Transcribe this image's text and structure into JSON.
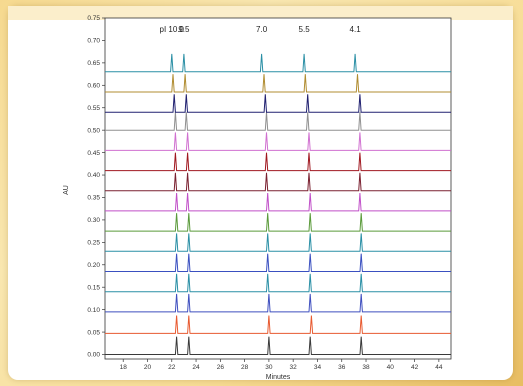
{
  "chart_data": {
    "type": "line",
    "xlabel": "Minutes",
    "ylabel": "AU",
    "xlim": [
      16.5,
      45.0
    ],
    "ylim": [
      -0.01,
      0.75
    ],
    "x_ticks": [
      18,
      20,
      22,
      24,
      26,
      28,
      30,
      32,
      34,
      36,
      38,
      40,
      42,
      44
    ],
    "y_ticks": [
      0.0,
      0.05,
      0.1,
      0.15,
      0.2,
      0.25,
      0.3,
      0.35,
      0.4,
      0.45,
      0.5,
      0.55,
      0.6,
      0.65,
      0.7,
      0.75
    ],
    "y_tick_labels": [
      "0.00",
      "0.05",
      "0.10",
      "0.15",
      "0.20",
      "0.25",
      "0.30",
      "0.35",
      "0.40",
      "0.45",
      "0.50",
      "0.55",
      "0.60",
      "0.65",
      "0.70",
      "0.75"
    ],
    "peak_labels": [
      {
        "text": "pI 10.0",
        "x": 22.0
      },
      {
        "text": "9.5",
        "x": 23.0
      },
      {
        "text": "7.0",
        "x": 29.4
      },
      {
        "text": "5.5",
        "x": 32.9
      },
      {
        "text": "4.1",
        "x": 37.1
      }
    ],
    "series": [
      {
        "baseline": 0.0,
        "color": "#3a3a3a",
        "peaks": [
          22.4,
          23.4,
          30.0,
          33.4,
          37.6
        ],
        "heights": [
          0.04,
          0.04,
          0.04,
          0.04,
          0.04
        ]
      },
      {
        "baseline": 0.047,
        "color": "#e85a30",
        "peaks": [
          22.4,
          23.4,
          30.0,
          33.5,
          37.6
        ],
        "heights": [
          0.04,
          0.04,
          0.04,
          0.04,
          0.04
        ]
      },
      {
        "baseline": 0.095,
        "color": "#3f4fbf",
        "peaks": [
          22.4,
          23.4,
          30.0,
          33.4,
          37.6
        ],
        "heights": [
          0.04,
          0.04,
          0.04,
          0.04,
          0.04
        ]
      },
      {
        "baseline": 0.14,
        "color": "#2a8fa5",
        "peaks": [
          22.4,
          23.4,
          29.9,
          33.4,
          37.6
        ],
        "heights": [
          0.04,
          0.04,
          0.04,
          0.04,
          0.04
        ]
      },
      {
        "baseline": 0.185,
        "color": "#3a50c0",
        "peaks": [
          22.4,
          23.4,
          29.9,
          33.4,
          37.6
        ],
        "heights": [
          0.04,
          0.04,
          0.04,
          0.04,
          0.04
        ]
      },
      {
        "baseline": 0.23,
        "color": "#2a8fa5",
        "peaks": [
          22.4,
          23.4,
          29.9,
          33.4,
          37.6
        ],
        "heights": [
          0.04,
          0.04,
          0.04,
          0.04,
          0.04
        ]
      },
      {
        "baseline": 0.275,
        "color": "#5a9a3a",
        "peaks": [
          22.4,
          23.4,
          29.9,
          33.4,
          37.6
        ],
        "heights": [
          0.04,
          0.04,
          0.04,
          0.04,
          0.04
        ]
      },
      {
        "baseline": 0.32,
        "color": "#c04fc8",
        "peaks": [
          22.4,
          23.3,
          29.9,
          33.4,
          37.5
        ],
        "heights": [
          0.04,
          0.04,
          0.04,
          0.04,
          0.04
        ]
      },
      {
        "baseline": 0.365,
        "color": "#7a2030",
        "peaks": [
          22.3,
          23.3,
          29.8,
          33.3,
          37.5
        ],
        "heights": [
          0.04,
          0.04,
          0.04,
          0.04,
          0.04
        ]
      },
      {
        "baseline": 0.41,
        "color": "#a01820",
        "peaks": [
          22.3,
          23.3,
          29.8,
          33.3,
          37.5
        ],
        "heights": [
          0.04,
          0.04,
          0.04,
          0.04,
          0.04
        ]
      },
      {
        "baseline": 0.455,
        "color": "#d070d0",
        "peaks": [
          22.3,
          23.3,
          29.8,
          33.3,
          37.5
        ],
        "heights": [
          0.04,
          0.04,
          0.04,
          0.04,
          0.04
        ]
      },
      {
        "baseline": 0.5,
        "color": "#909090",
        "peaks": [
          22.3,
          23.2,
          29.8,
          33.2,
          37.5
        ],
        "heights": [
          0.04,
          0.04,
          0.04,
          0.04,
          0.04
        ]
      },
      {
        "baseline": 0.54,
        "color": "#202070",
        "peaks": [
          22.2,
          23.2,
          29.7,
          33.2,
          37.5
        ],
        "heights": [
          0.04,
          0.04,
          0.04,
          0.04,
          0.04
        ]
      },
      {
        "baseline": 0.585,
        "color": "#b08c30",
        "peaks": [
          22.1,
          23.1,
          29.6,
          33.0,
          37.3
        ],
        "heights": [
          0.04,
          0.04,
          0.04,
          0.04,
          0.04
        ]
      },
      {
        "baseline": 0.63,
        "color": "#2a8fa5",
        "peaks": [
          22.0,
          23.0,
          29.4,
          32.9,
          37.1
        ],
        "heights": [
          0.04,
          0.04,
          0.04,
          0.04,
          0.04
        ]
      }
    ]
  }
}
